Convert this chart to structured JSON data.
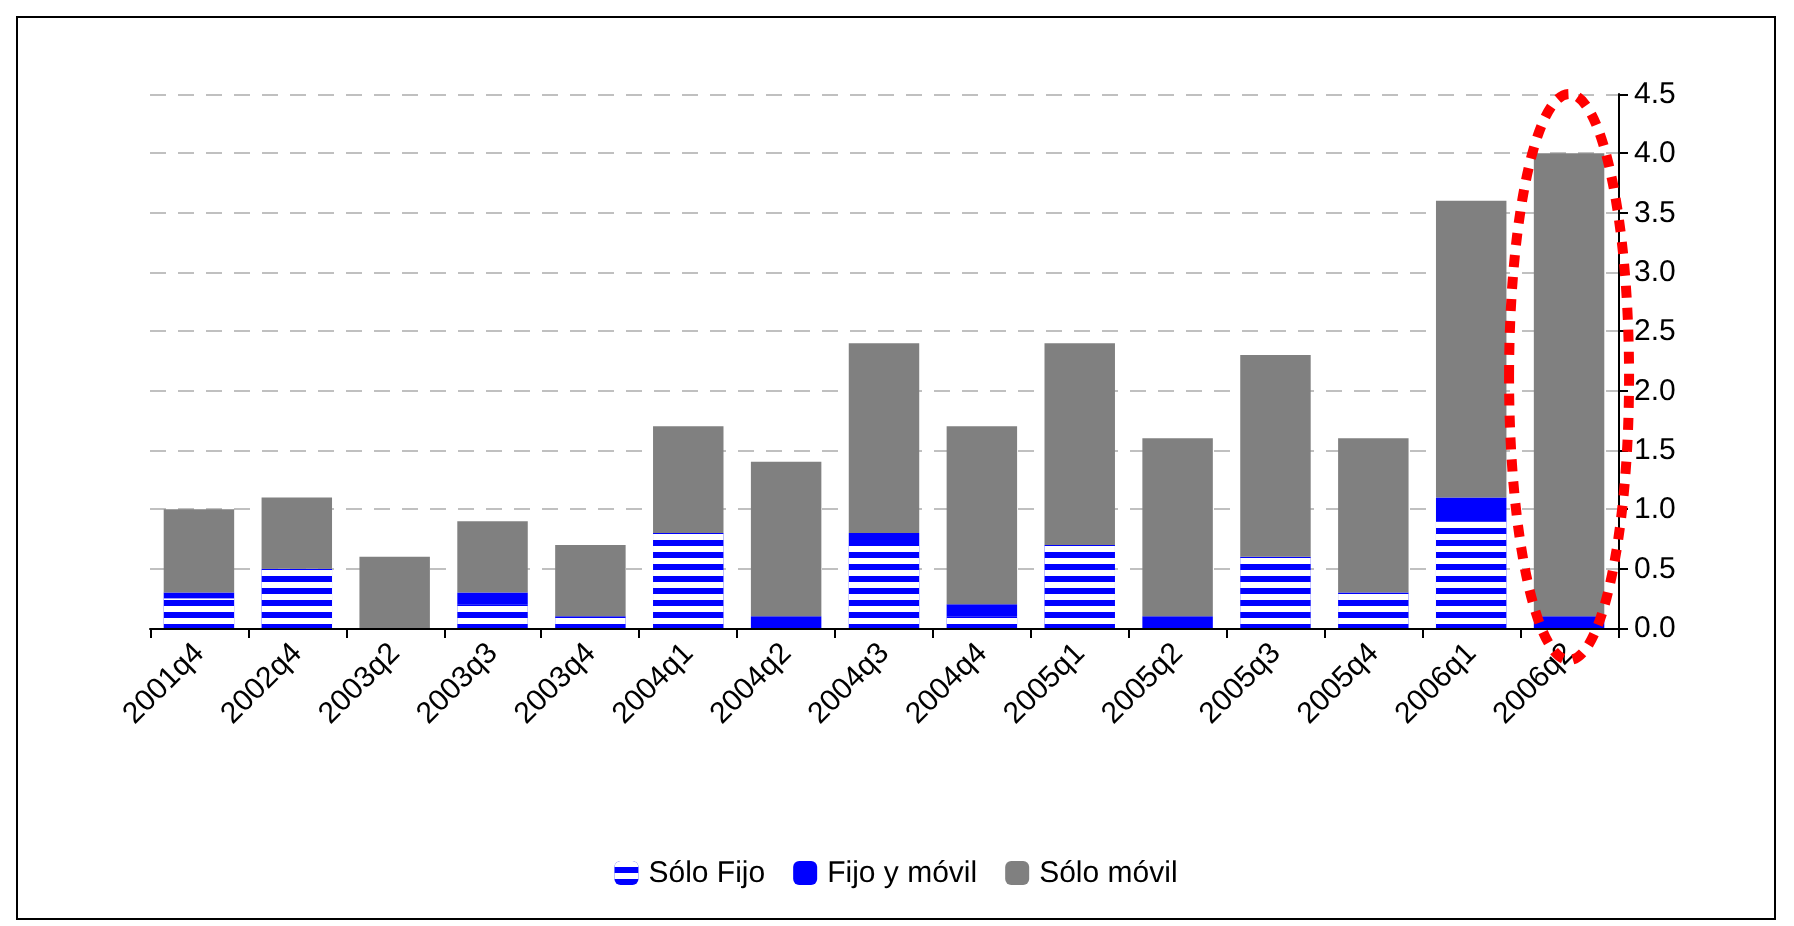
{
  "chart_data": {
    "type": "bar",
    "stacked": true,
    "categories": [
      "2001q4",
      "2002q4",
      "2003q2",
      "2003q3",
      "2003q4",
      "2004q1",
      "2004q2",
      "2004q3",
      "2004q4",
      "2005q1",
      "2005q2",
      "2005q3",
      "2005q4",
      "2006q1",
      "2006q2"
    ],
    "series": [
      {
        "name": "Sólo Fijo",
        "color": "#0000ff",
        "values": [
          0.25,
          0.5,
          0,
          0.2,
          0.1,
          0.8,
          0,
          0.7,
          0.1,
          0.7,
          0,
          0.6,
          0.3,
          0.9,
          0
        ]
      },
      {
        "name": "Fijo y móvil",
        "color": "#0000ff",
        "values": [
          0.05,
          0,
          0,
          0.1,
          0,
          0,
          0.1,
          0.1,
          0.1,
          0,
          0.1,
          0,
          0,
          0.2,
          0.1
        ]
      },
      {
        "name": "Sólo móvil",
        "color": "#808080",
        "values": [
          0.7,
          0.6,
          0.6,
          0.6,
          0.6,
          0.9,
          1.3,
          1.6,
          1.5,
          1.7,
          1.5,
          1.7,
          1.3,
          2.5,
          3.9
        ]
      }
    ],
    "ylim": [
      0,
      4.5
    ],
    "yticks": [
      {
        "value": 0,
        "label": "0.0"
      },
      {
        "value": 0.5,
        "label": "0.5"
      },
      {
        "value": 1,
        "label": "1.0"
      },
      {
        "value": 1.5,
        "label": "1.5"
      },
      {
        "value": 2,
        "label": "2.0"
      },
      {
        "value": 2.5,
        "label": "2.5"
      },
      {
        "value": 3,
        "label": "3.0"
      },
      {
        "value": 3.5,
        "label": "3.5"
      },
      {
        "value": 4,
        "label": "4.0"
      },
      {
        "value": 4.5,
        "label": "4.5"
      }
    ],
    "grid": "y",
    "legend": "bottom"
  }
}
